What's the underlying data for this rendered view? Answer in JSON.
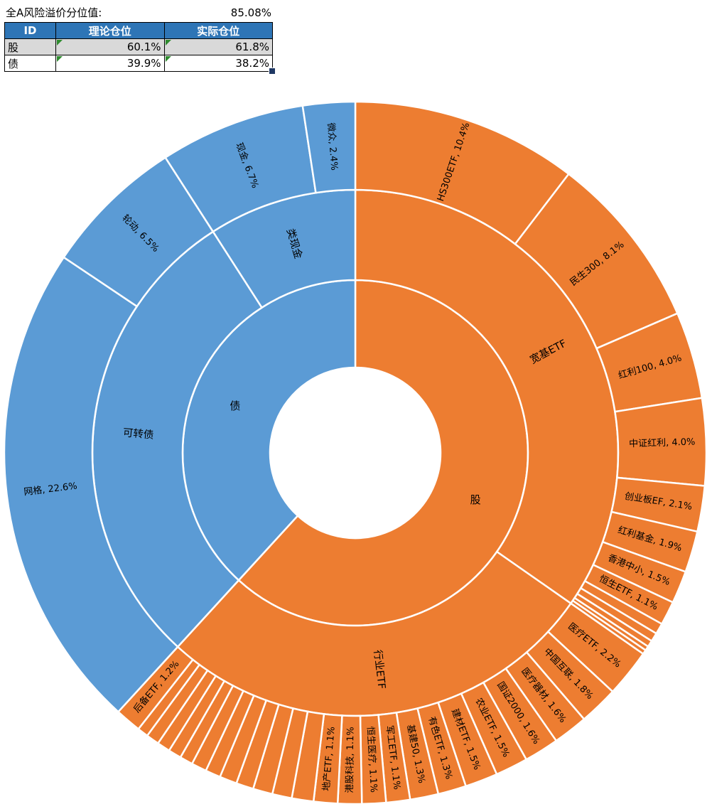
{
  "header": {
    "premium_label": "全A风险溢价分位值:",
    "premium_value": "85.08%"
  },
  "table": {
    "headers": [
      "ID",
      "理论仓位",
      "实际仓位"
    ],
    "rows": [
      {
        "id": "股",
        "theoretical": "60.1%",
        "actual": "61.8%"
      },
      {
        "id": "债",
        "theoretical": "39.9%",
        "actual": "38.2%"
      }
    ]
  },
  "chart_data": {
    "type": "sunburst",
    "unit": "%",
    "start_angle_deg": 0,
    "direction": "clockwise",
    "colors": {
      "stock": "#ED7D31",
      "bond": "#5B9BD5",
      "separator": "#FFFFFF",
      "label": "#000000"
    },
    "tree": [
      {
        "name": "股",
        "color": "#ED7D31",
        "children": [
          {
            "name": "宽基ETF",
            "children": [
              {
                "name": "HS300ETF",
                "value": 10.4
              },
              {
                "name": "民生300",
                "value": 8.1
              },
              {
                "name": "红利100",
                "value": 4.0
              },
              {
                "name": "中证红利",
                "value": 4.0
              },
              {
                "name": "创业板EF",
                "value": 2.1
              },
              {
                "name": "红利基金",
                "value": 1.9
              },
              {
                "name": "香港中小",
                "value": 1.5
              },
              {
                "name": "恒生ETF",
                "value": 1.1
              },
              {
                "name": "",
                "value": 0.5
              },
              {
                "name": "",
                "value": 0.4
              },
              {
                "name": "",
                "value": 0.3
              },
              {
                "name": "",
                "value": 0.2
              },
              {
                "name": "",
                "value": 0.2
              }
            ]
          },
          {
            "name": "行业ETF",
            "children": [
              {
                "name": "医疗ETF",
                "value": 2.2
              },
              {
                "name": "中国互联",
                "value": 1.8
              },
              {
                "name": "医疗器材",
                "value": 1.6
              },
              {
                "name": "国证2000",
                "value": 1.6
              },
              {
                "name": "农业ETF",
                "value": 1.5
              },
              {
                "name": "建材ETF",
                "value": 1.5
              },
              {
                "name": "有色ETF",
                "value": 1.3
              },
              {
                "name": "基建50",
                "value": 1.3
              },
              {
                "name": "军工ETF",
                "value": 1.1
              },
              {
                "name": "恒生医疗",
                "value": 1.1
              },
              {
                "name": "港股科技",
                "value": 1.1
              },
              {
                "name": "地产ETF",
                "value": 1.1
              },
              {
                "name": "",
                "value": 1.0
              },
              {
                "name": "",
                "value": 0.9
              },
              {
                "name": "",
                "value": 0.9
              },
              {
                "name": "",
                "value": 0.8
              },
              {
                "name": "",
                "value": 0.8
              },
              {
                "name": "",
                "value": 0.7
              },
              {
                "name": "",
                "value": 0.7
              },
              {
                "name": "",
                "value": 0.6
              },
              {
                "name": "",
                "value": 0.6
              },
              {
                "name": "",
                "value": 0.6
              },
              {
                "name": "",
                "value": 0.6
              },
              {
                "name": "",
                "value": 0.5
              },
              {
                "name": "后备ETF",
                "value": 1.2
              }
            ]
          }
        ]
      },
      {
        "name": "债",
        "color": "#5B9BD5",
        "children": [
          {
            "name": "可转债",
            "children": [
              {
                "name": "网格",
                "value": 22.6
              },
              {
                "name": "轮动",
                "value": 6.5
              }
            ]
          },
          {
            "name": "类现金",
            "children": [
              {
                "name": "现金",
                "value": 6.7
              },
              {
                "name": "微众",
                "value": 2.4
              }
            ]
          }
        ]
      }
    ]
  }
}
